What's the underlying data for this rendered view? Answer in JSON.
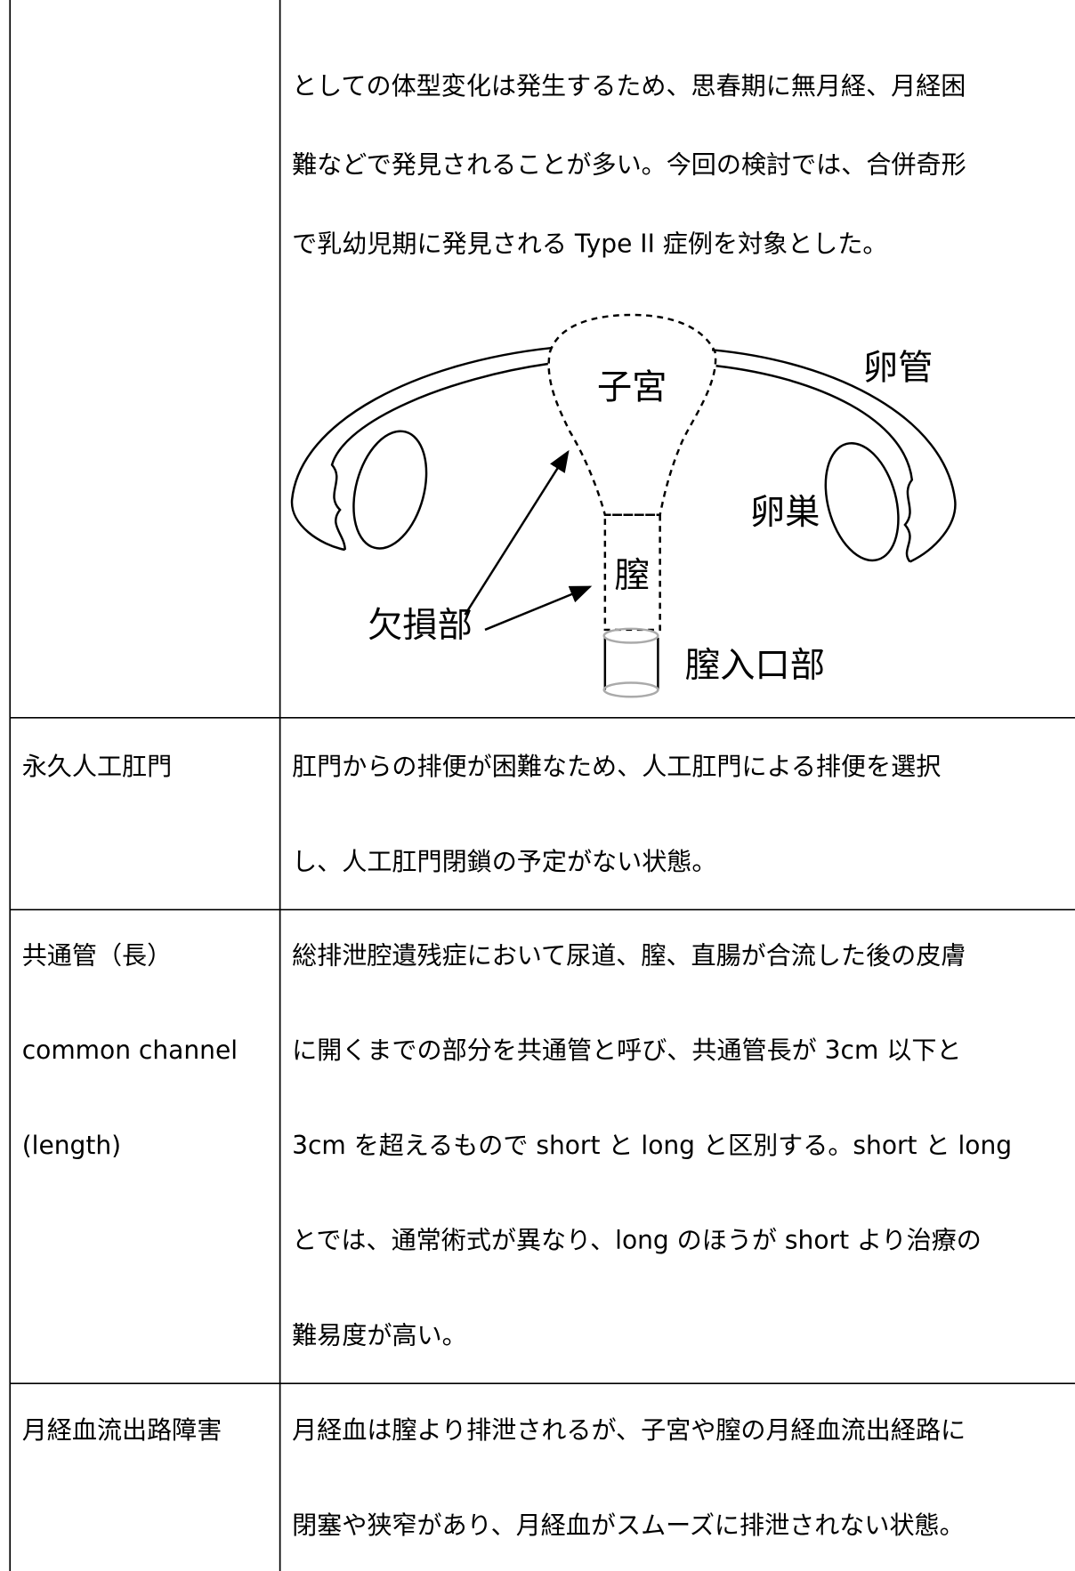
{
  "table": {
    "rows": [
      {
        "description": [
          "としての体型変化は発生するため、思春期に無月経、月経困",
          "難などで発見されることが多い。今回の検討では、合併奇形",
          "で乳幼児期に発見される Type II 症例を対象とした。"
        ],
        "figure": {
          "uterus": "子宮",
          "tube": "卵管",
          "ovary": "卵巣",
          "vagina": "膣",
          "defect": "欠損部",
          "introitus": "膣入口部"
        }
      },
      {
        "term": [
          "永久人工肛門"
        ],
        "description": [
          "肛門からの排便が困難なため、人工肛門による排便を選択",
          "し、人工肛門閉鎖の予定がない状態。"
        ]
      },
      {
        "term": [
          "共通管（長）",
          "common channel",
          "(length)"
        ],
        "description": [
          "総排泄腔遺残症において尿道、膣、直腸が合流した後の皮膚",
          "に開くまでの部分を共通管と呼び、共通管長が 3cm 以下と",
          "3cm を超えるもので short と long と区別する。short と long",
          "とでは、通常術式が異なり、long のほうが short より治療の",
          "難易度が高い。"
        ]
      },
      {
        "term": [
          "月経血流出路障害"
        ],
        "description": [
          "月経血は膣より排泄されるが、子宮や膣の月経血流出経路に",
          "閉塞や狭窄があり、月経血がスムーズに排泄されない状態。"
        ]
      }
    ]
  }
}
